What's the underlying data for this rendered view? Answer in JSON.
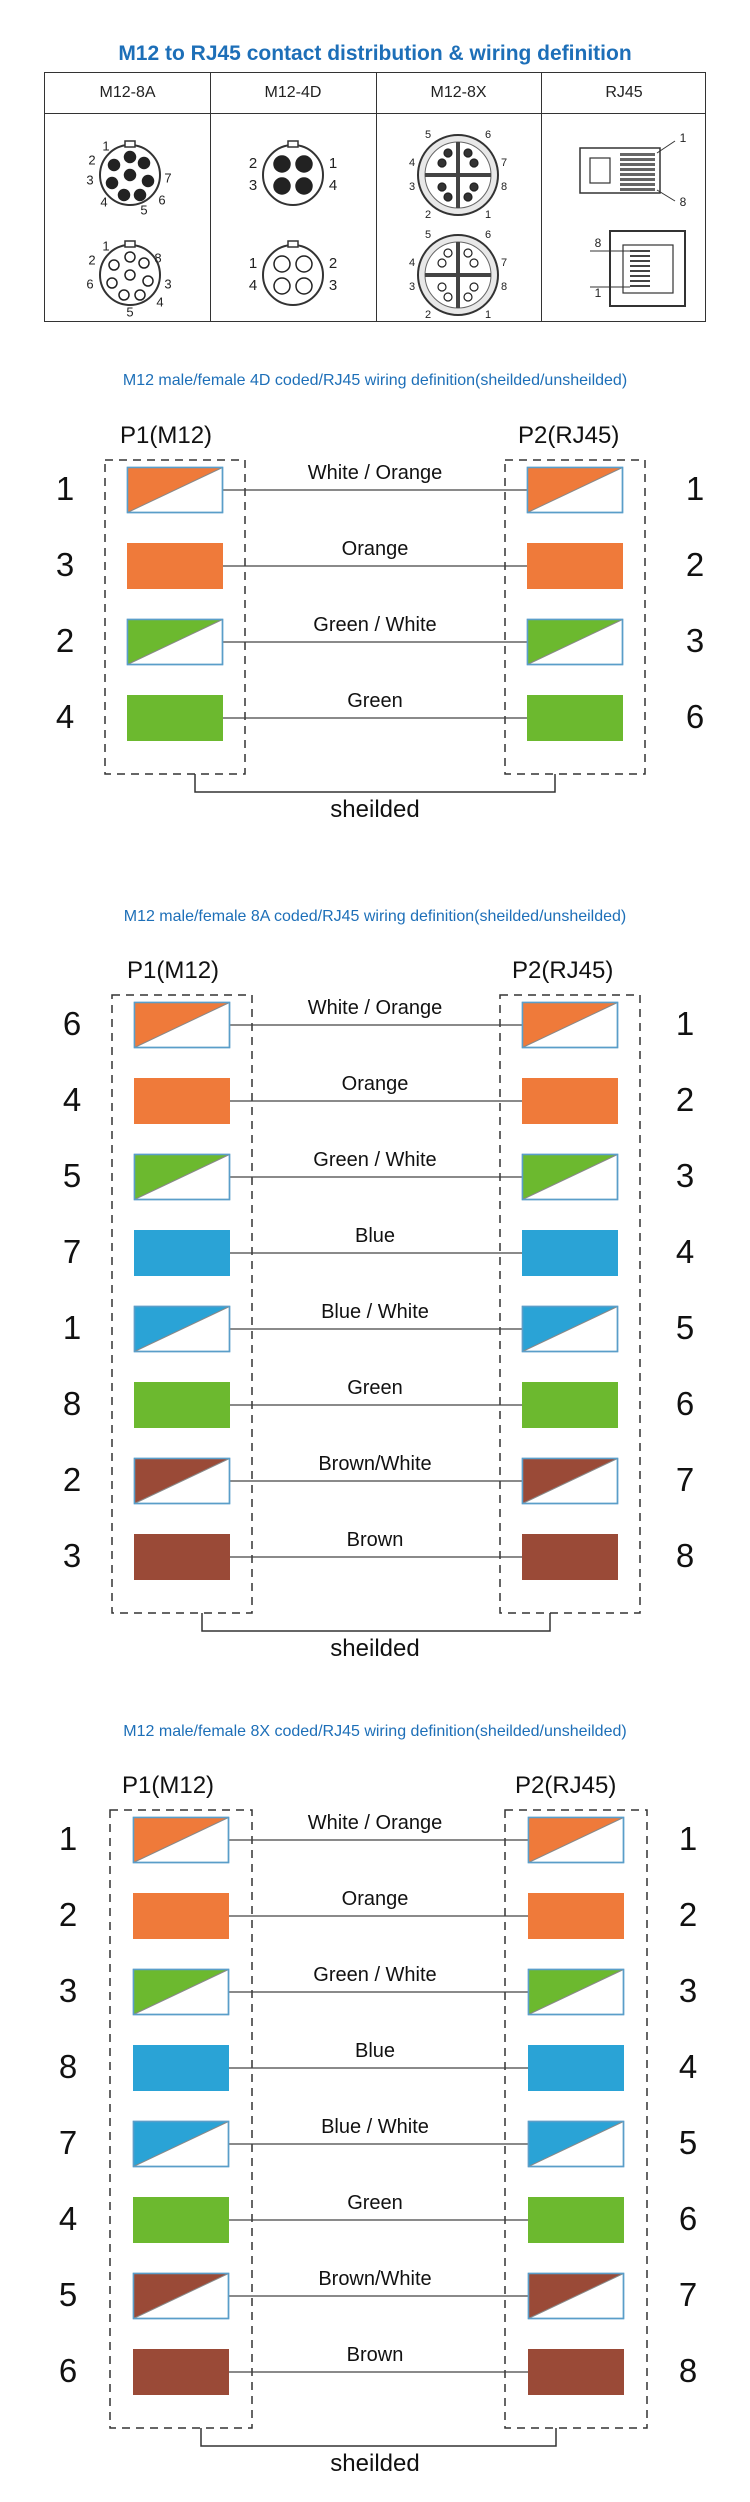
{
  "title": "M12 to RJ45 contact distribution & wiring definition",
  "connector_table": {
    "headers": [
      "M12-8A",
      "M12-4D",
      "M12-8X",
      "RJ45"
    ],
    "m12_8a_pins": [
      "1",
      "2",
      "3",
      "4",
      "5",
      "6",
      "7",
      "8"
    ],
    "m12_4d_pins": [
      "1",
      "2",
      "3",
      "4"
    ],
    "m12_8x_pins": [
      "1",
      "2",
      "3",
      "4",
      "5",
      "6",
      "7",
      "8"
    ],
    "rj45_pins": [
      "1",
      "8"
    ]
  },
  "colors": {
    "orange": "#ef7a3a",
    "green": "#6cb92f",
    "blue": "#2aa3d6",
    "brown": "#9a4a37",
    "white": "#ffffff",
    "title_blue": "#1d6fb8"
  },
  "sections": [
    {
      "title": "M12 male/female 4D coded/RJ45 wiring definition(sheilded/unsheilded)",
      "p1_label": "P1(M12)",
      "p2_label": "P2(RJ45)",
      "shield_label": "sheilded",
      "wires": [
        {
          "left_pin": "1",
          "right_pin": "1",
          "label": "White / Orange",
          "color": "orange",
          "striped": true
        },
        {
          "left_pin": "3",
          "right_pin": "2",
          "label": "Orange",
          "color": "orange",
          "striped": false
        },
        {
          "left_pin": "2",
          "right_pin": "3",
          "label": "Green / White",
          "color": "green",
          "striped": true
        },
        {
          "left_pin": "4",
          "right_pin": "6",
          "label": "Green",
          "color": "green",
          "striped": false
        }
      ]
    },
    {
      "title": "M12 male/female 8A coded/RJ45 wiring definition(sheilded/unsheilded)",
      "p1_label": "P1(M12)",
      "p2_label": "P2(RJ45)",
      "shield_label": "sheilded",
      "wires": [
        {
          "left_pin": "6",
          "right_pin": "1",
          "label": "White / Orange",
          "color": "orange",
          "striped": true
        },
        {
          "left_pin": "4",
          "right_pin": "2",
          "label": "Orange",
          "color": "orange",
          "striped": false
        },
        {
          "left_pin": "5",
          "right_pin": "3",
          "label": "Green / White",
          "color": "green",
          "striped": true
        },
        {
          "left_pin": "7",
          "right_pin": "4",
          "label": "Blue",
          "color": "blue",
          "striped": false
        },
        {
          "left_pin": "1",
          "right_pin": "5",
          "label": "Blue / White",
          "color": "blue",
          "striped": true
        },
        {
          "left_pin": "8",
          "right_pin": "6",
          "label": "Green",
          "color": "green",
          "striped": false
        },
        {
          "left_pin": "2",
          "right_pin": "7",
          "label": "Brown/White",
          "color": "brown",
          "striped": true
        },
        {
          "left_pin": "3",
          "right_pin": "8",
          "label": "Brown",
          "color": "brown",
          "striped": false
        }
      ]
    },
    {
      "title": "M12 male/female 8X coded/RJ45 wiring definition(sheilded/unsheilded)",
      "p1_label": "P1(M12)",
      "p2_label": "P2(RJ45)",
      "shield_label": "sheilded",
      "wires": [
        {
          "left_pin": "1",
          "right_pin": "1",
          "label": "White / Orange",
          "color": "orange",
          "striped": true
        },
        {
          "left_pin": "2",
          "right_pin": "2",
          "label": "Orange",
          "color": "orange",
          "striped": false
        },
        {
          "left_pin": "3",
          "right_pin": "3",
          "label": "Green / White",
          "color": "green",
          "striped": true
        },
        {
          "left_pin": "8",
          "right_pin": "4",
          "label": "Blue",
          "color": "blue",
          "striped": false
        },
        {
          "left_pin": "7",
          "right_pin": "5",
          "label": "Blue / White",
          "color": "blue",
          "striped": true
        },
        {
          "left_pin": "4",
          "right_pin": "6",
          "label": "Green",
          "color": "green",
          "striped": false
        },
        {
          "left_pin": "5",
          "right_pin": "7",
          "label": "Brown/White",
          "color": "brown",
          "striped": true
        },
        {
          "left_pin": "6",
          "right_pin": "8",
          "label": "Brown",
          "color": "brown",
          "striped": false
        }
      ]
    }
  ]
}
